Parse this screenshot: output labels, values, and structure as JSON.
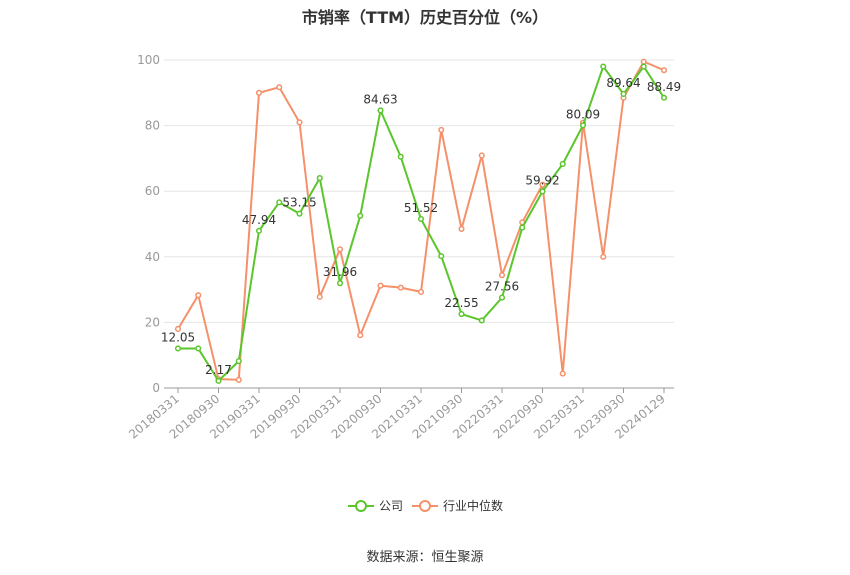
{
  "chart_data": {
    "type": "line",
    "title": "市销率（TTM）历史百分位（%）",
    "xlabel": "",
    "ylabel": "",
    "ylim": [
      0,
      100
    ],
    "yticks": [
      0,
      20,
      40,
      60,
      80,
      100
    ],
    "x": [
      "20180331",
      "20180630",
      "20180930",
      "20181231",
      "20190331",
      "20190630",
      "20190930",
      "20191231",
      "20200331",
      "20200630",
      "20200930",
      "20201231",
      "20210331",
      "20210630",
      "20210930",
      "20211231",
      "20220331",
      "20220630",
      "20220930",
      "20221231",
      "20230331",
      "20230630",
      "20230930",
      "20231231",
      "20240129"
    ],
    "xtick_labels": [
      "20180331",
      "20180930",
      "20190331",
      "20190930",
      "20200331",
      "20200930",
      "20210331",
      "20210930",
      "20220331",
      "20220930",
      "20230331",
      "20230930",
      "20240129"
    ],
    "series": [
      {
        "name": "公司",
        "color": "#5ac62c",
        "values": [
          12.05,
          12.05,
          2.17,
          8.2,
          47.94,
          56.6,
          53.15,
          64.0,
          31.96,
          52.5,
          84.63,
          70.5,
          51.52,
          40.2,
          22.55,
          20.6,
          27.56,
          48.9,
          59.92,
          68.3,
          80.09,
          98.0,
          89.64,
          98.0,
          88.49
        ],
        "labels": [
          "12.05",
          null,
          "2.17",
          null,
          "47.94",
          null,
          "53.15",
          null,
          "31.96",
          null,
          "84.63",
          null,
          "51.52",
          null,
          "22.55",
          null,
          "27.56",
          null,
          "59.92",
          null,
          "80.09",
          null,
          "89.64",
          null,
          "88.49"
        ]
      },
      {
        "name": "行业中位数",
        "color": "#f5916a",
        "values": [
          18.0,
          28.3,
          2.7,
          2.5,
          90.0,
          91.7,
          81.0,
          27.8,
          42.3,
          16.1,
          31.2,
          30.6,
          29.3,
          78.7,
          48.5,
          70.9,
          34.4,
          50.5,
          62.0,
          4.4,
          80.9,
          40.0,
          88.5,
          99.5,
          96.9
        ]
      }
    ],
    "grid": true,
    "legend_position": "bottom-center"
  },
  "footer": {
    "source": "数据来源：恒生聚源"
  }
}
